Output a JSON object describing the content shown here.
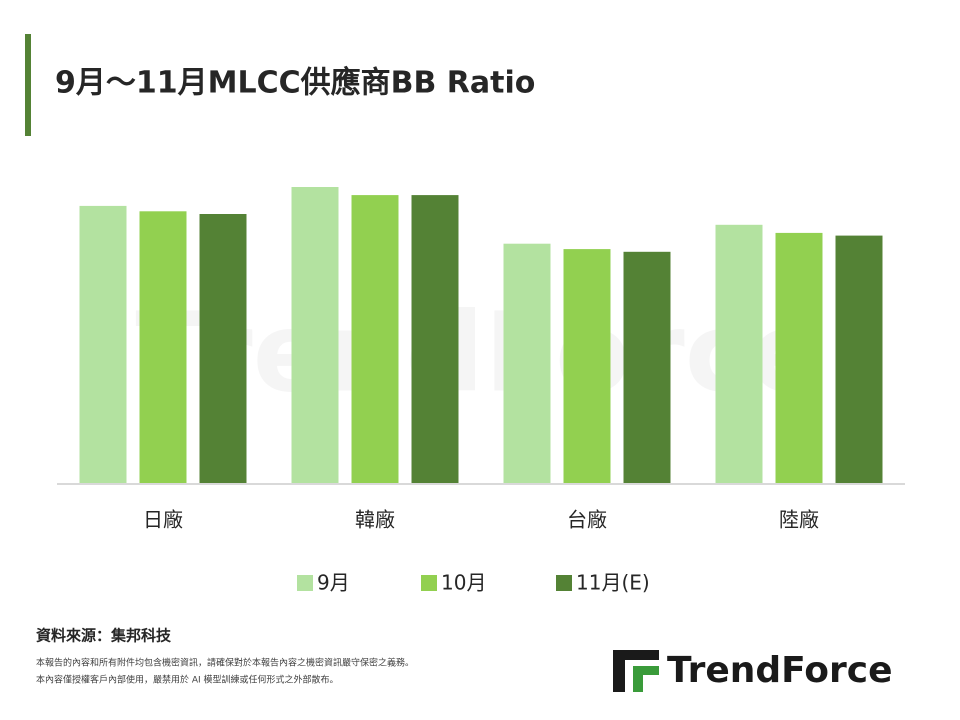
{
  "chart_data": {
    "type": "bar",
    "title": "9月～11月MLCC供應商BB Ratio",
    "categories": [
      "日廠",
      "韓廠",
      "台廠",
      "陸廠"
    ],
    "series": [
      {
        "name": "9月",
        "color": "#b3e2a0",
        "values": [
          1.03,
          1.1,
          0.89,
          0.96
        ]
      },
      {
        "name": "10月",
        "color": "#92d050",
        "values": [
          1.01,
          1.07,
          0.87,
          0.93
        ]
      },
      {
        "name": "11月(E)",
        "color": "#548235",
        "values": [
          1.0,
          1.07,
          0.86,
          0.92
        ]
      }
    ],
    "ylim": [
      0,
      1.2
    ],
    "legend": "bottom"
  },
  "watermark": "TrendForce",
  "footer": {
    "source": "資料來源：集邦科技",
    "disclaimer": [
      "本報告的內容和所有附件均包含機密資訊，請確保對於本報告內容之機密資訊嚴守保密之義務。",
      "本內容僅授權客戶內部使用，嚴禁用於 AI 模型訓練或任何形式之外部散布。"
    ],
    "logo": "TrendForce"
  }
}
